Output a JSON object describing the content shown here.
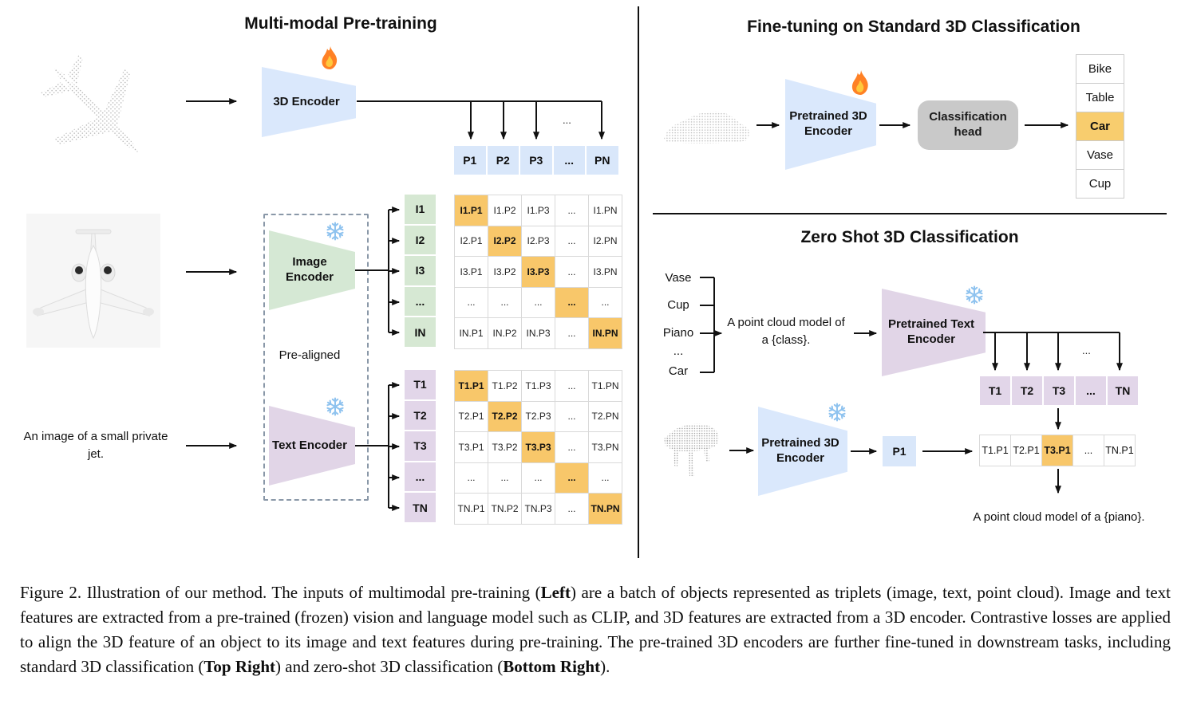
{
  "left": {
    "title": "Multi-modal Pre-training",
    "encoder3d_label": "3D Encoder",
    "image_encoder_label": "Image Encoder",
    "text_encoder_label": "Text Encoder",
    "pre_aligned": "Pre-aligned",
    "text_input": "An image of a small private jet.",
    "drop_ellipsis": "...",
    "p_row": [
      "P1",
      "P2",
      "P3",
      "...",
      "PN"
    ],
    "i_labels": [
      "I1",
      "I2",
      "I3",
      "...",
      "IN"
    ],
    "i_matrix": {
      "highlight_diagonal": true,
      "cells": [
        [
          "I1.P1",
          "I1.P2",
          "I1.P3",
          "...",
          "I1.PN"
        ],
        [
          "I2.P1",
          "I2.P2",
          "I2.P3",
          "...",
          "I2.PN"
        ],
        [
          "I3.P1",
          "I3.P2",
          "I3.P3",
          "...",
          "I3.PN"
        ],
        [
          "...",
          "...",
          "...",
          "...",
          "..."
        ],
        [
          "IN.P1",
          "IN.P2",
          "IN.P3",
          "...",
          "IN.PN"
        ]
      ]
    },
    "t_labels": [
      "T1",
      "T2",
      "T3",
      "...",
      "TN"
    ],
    "t_matrix": {
      "highlight_diagonal": true,
      "cells": [
        [
          "T1.P1",
          "T1.P2",
          "T1.P3",
          "...",
          "T1.PN"
        ],
        [
          "T2.P1",
          "T2.P2",
          "T2.P3",
          "...",
          "T2.PN"
        ],
        [
          "T3.P1",
          "T3.P2",
          "T3.P3",
          "...",
          "T3.PN"
        ],
        [
          "...",
          "...",
          "...",
          "...",
          "..."
        ],
        [
          "TN.P1",
          "TN.P2",
          "TN.P3",
          "...",
          "TN.PN"
        ]
      ]
    }
  },
  "top_right": {
    "title": "Fine-tuning on Standard 3D Classification",
    "encoder_label": "Pretrained 3D Encoder",
    "head_label": "Classification head",
    "classes": [
      {
        "label": "Bike"
      },
      {
        "label": "Table"
      },
      {
        "label": "Car",
        "highlight": true
      },
      {
        "label": "Vase"
      },
      {
        "label": "Cup"
      }
    ]
  },
  "bottom_right": {
    "title": "Zero Shot 3D Classification",
    "class_words": [
      "Vase",
      "Cup",
      "Piano",
      "...",
      "Car"
    ],
    "prompt_line1": "A point cloud model of",
    "prompt_line2": "a {class}.",
    "text_encoder_label": "Pretrained Text Encoder",
    "encoder3d_label": "Pretrained 3D Encoder",
    "p1_label": "P1",
    "drop_ellipsis": "...",
    "t_row": [
      "T1",
      "T2",
      "T3",
      "...",
      "TN"
    ],
    "tp_row": [
      {
        "label": "T1.P1"
      },
      {
        "label": "T2.P1"
      },
      {
        "label": "T3.P1",
        "highlight": true
      },
      {
        "label": "..."
      },
      {
        "label": "TN.P1"
      }
    ],
    "result_text": "A point cloud model of a {piano}."
  },
  "caption": {
    "segments": [
      {
        "t": "Figure 2. Illustration of our method. The inputs of multimodal pre-training ("
      },
      {
        "t": "Left",
        "b": true
      },
      {
        "t": ") are a batch of objects represented as triplets (image, text, point cloud). Image and text features are extracted from a pre-trained (frozen) vision and language model such as CLIP, and 3D features are extracted from a 3D encoder. Contrastive losses are applied to align the 3D feature of an object to its image and text features during pre-training. The pre-trained 3D encoders are further fine-tuned in downstream tasks, including standard 3D classification ("
      },
      {
        "t": "Top Right",
        "b": true
      },
      {
        "t": ") and zero-shot 3D classification ("
      },
      {
        "t": "Bottom Right",
        "b": true
      },
      {
        "t": ")."
      }
    ]
  },
  "icons": {
    "trainable": "flame-icon",
    "frozen": "snowflake-icon"
  },
  "colors": {
    "point_blue": "#dae8fc",
    "image_green": "#d5e8d4",
    "text_purple": "#e1d5e7",
    "highlight_orange": "#f8c76a",
    "head_gray": "#c9c9c9"
  }
}
